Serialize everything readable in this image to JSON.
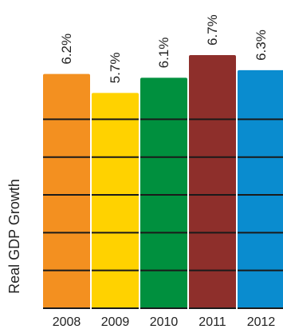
{
  "chart_data": {
    "type": "bar",
    "categories": [
      "2008",
      "2009",
      "2010",
      "2011",
      "2012"
    ],
    "values": [
      6.2,
      5.7,
      6.1,
      6.7,
      6.3
    ],
    "value_labels": [
      "6.2%",
      "5.7%",
      "6.1%",
      "6.7%",
      "6.3%"
    ],
    "colors": [
      "#F39020",
      "#FFD200",
      "#00903E",
      "#8E2F2B",
      "#0A8CCF"
    ],
    "ylabel": "Real GDP Growth",
    "xlabel": "",
    "ylim": [
      0,
      6.7
    ],
    "grid": true,
    "legend": "none"
  }
}
